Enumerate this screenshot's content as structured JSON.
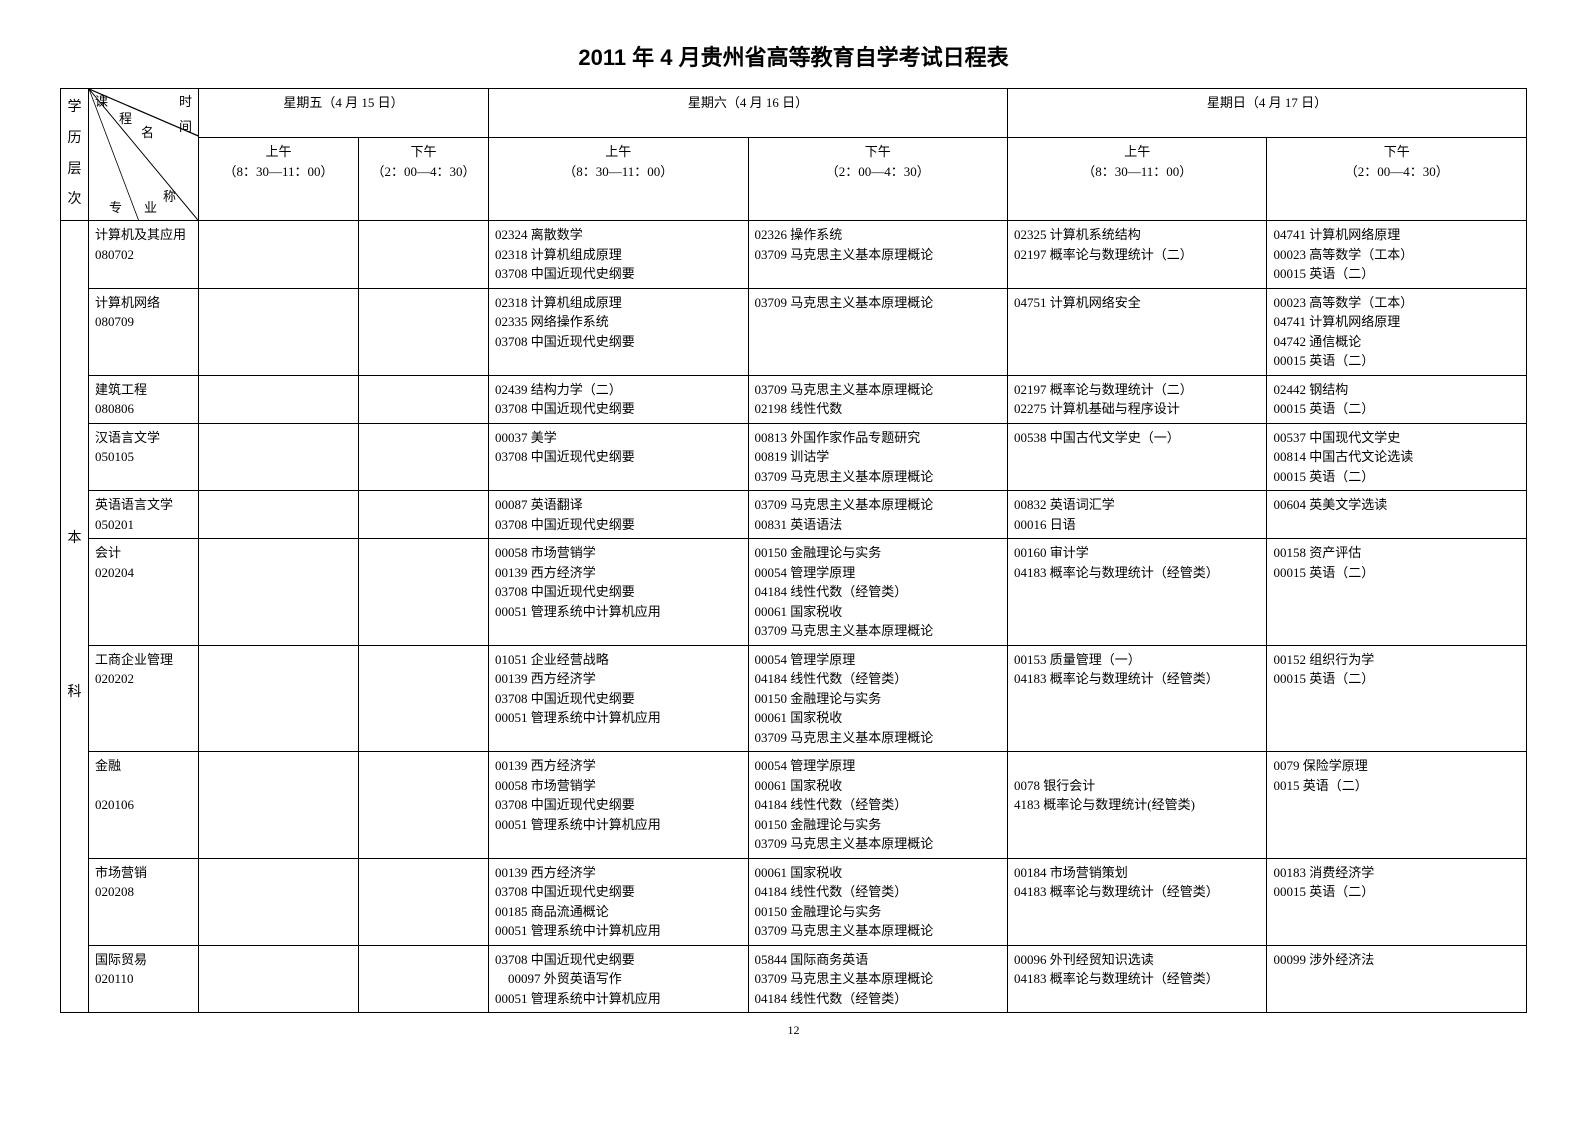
{
  "title": "2011 年 4 月贵州省高等教育自学考试日程表",
  "page_number": "12",
  "level_label": "学历层次",
  "level_value": "本\n\n\n\n\n科",
  "diag": {
    "top_left": "课",
    "top_right": "时",
    "mid_left": "程",
    "mid_center_r": "间",
    "center_name": "名",
    "bot_left": "专",
    "bot_suffix": "称",
    "bot_right": "业"
  },
  "day_headers": [
    "星期五（4 月 15 日）",
    "星期六（4 月 16 日）",
    "星期日（4 月 17 日）"
  ],
  "session_headers": {
    "fri_am": "上午\n（8：30—11：00）",
    "fri_pm": "下午\n（2：00—4：30）",
    "sat_am": "上午\n（8：30—11：00）",
    "sat_pm": "下午\n（2：00—4：30）",
    "sun_am": "上午\n（8：30—11：00）",
    "sun_pm": "下午\n（2：00—4：30）"
  },
  "rows": [
    {
      "major": "计算机及其应用\n080702",
      "fri_am": "",
      "fri_pm": "",
      "sat_am": "02324 离散数学\n02318 计算机组成原理\n03708 中国近现代史纲要",
      "sat_pm": "02326 操作系统\n03709 马克思主义基本原理概论",
      "sun_am": "02325 计算机系统结构\n02197 概率论与数理统计（二）",
      "sun_pm": "04741 计算机网络原理\n00023 高等数学（工本）\n00015 英语（二）"
    },
    {
      "major": "计算机网络\n080709",
      "fri_am": "",
      "fri_pm": "",
      "sat_am": "02318 计算机组成原理\n02335 网络操作系统\n03708 中国近现代史纲要",
      "sat_pm": "03709 马克思主义基本原理概论",
      "sun_am": "04751 计算机网络安全",
      "sun_pm": "00023 高等数学（工本）\n04741 计算机网络原理\n04742 通信概论\n00015 英语（二）"
    },
    {
      "major": "建筑工程\n080806",
      "fri_am": "",
      "fri_pm": "",
      "sat_am": "02439 结构力学（二）\n03708 中国近现代史纲要",
      "sat_pm": "03709 马克思主义基本原理概论\n02198 线性代数",
      "sun_am": "02197 概率论与数理统计（二）\n02275 计算机基础与程序设计",
      "sun_pm": "02442 钢结构\n00015 英语（二）"
    },
    {
      "major": "汉语言文学\n050105",
      "fri_am": "",
      "fri_pm": "",
      "sat_am": "00037 美学\n03708 中国近现代史纲要",
      "sat_pm": "00813 外国作家作品专题研究\n00819 训诂学\n03709 马克思主义基本原理概论",
      "sun_am": "00538 中国古代文学史（一）",
      "sun_pm": "00537 中国现代文学史\n00814 中国古代文论选读\n00015 英语（二）"
    },
    {
      "major": "英语语言文学\n050201",
      "fri_am": "",
      "fri_pm": "",
      "sat_am": "00087 英语翻译\n03708 中国近现代史纲要",
      "sat_pm": "03709 马克思主义基本原理概论\n00831 英语语法",
      "sun_am": "00832 英语词汇学\n00016 日语",
      "sun_pm": "00604 英美文学选读"
    },
    {
      "major": "会计\n020204",
      "fri_am": "",
      "fri_pm": "",
      "sat_am": "00058 市场营销学\n00139 西方经济学\n03708 中国近现代史纲要\n00051 管理系统中计算机应用",
      "sat_pm": "00150 金融理论与实务\n00054 管理学原理\n04184 线性代数（经管类）\n00061 国家税收\n03709 马克思主义基本原理概论",
      "sun_am": "00160 审计学\n04183 概率论与数理统计（经管类）",
      "sun_pm": "00158 资产评估\n00015 英语（二）"
    },
    {
      "major": "工商企业管理\n020202",
      "fri_am": "",
      "fri_pm": "",
      "sat_am": "01051 企业经营战略\n00139 西方经济学\n03708 中国近现代史纲要\n00051 管理系统中计算机应用",
      "sat_pm": "00054 管理学原理\n04184 线性代数（经管类）\n00150 金融理论与实务\n00061 国家税收\n03709 马克思主义基本原理概论",
      "sun_am": "00153 质量管理（一）\n04183 概率论与数理统计（经管类）",
      "sun_pm": "00152 组织行为学\n00015 英语（二）"
    },
    {
      "major": "金融\n\n020106",
      "fri_am": "",
      "fri_pm": "",
      "sat_am": "00139 西方经济学\n00058 市场营销学\n03708 中国近现代史纲要\n00051 管理系统中计算机应用",
      "sat_pm": "00054 管理学原理\n00061 国家税收\n04184 线性代数（经管类）\n00150 金融理论与实务\n03709 马克思主义基本原理概论",
      "sun_am": "\n0078 银行会计\n4183 概率论与数理统计(经管类)",
      "sun_pm": "0079 保险学原理\n0015 英语（二）"
    },
    {
      "major": "市场营销\n020208",
      "fri_am": "",
      "fri_pm": "",
      "sat_am": "00139 西方经济学\n03708 中国近现代史纲要\n00185 商品流通概论\n00051 管理系统中计算机应用",
      "sat_pm": "00061 国家税收\n04184 线性代数（经管类）\n00150 金融理论与实务\n03709 马克思主义基本原理概论",
      "sun_am": "00184 市场营销策划\n04183 概率论与数理统计（经管类）",
      "sun_pm": "00183 消费经济学\n00015 英语（二）"
    },
    {
      "major": "国际贸易\n020110",
      "fri_am": "",
      "fri_pm": "",
      "sat_am": "03708 中国近现代史纲要\n　00097 外贸英语写作\n00051 管理系统中计算机应用",
      "sat_pm": "05844 国际商务英语\n03709 马克思主义基本原理概论\n04184 线性代数（经管类）",
      "sun_am": "00096 外刊经贸知识选读\n04183 概率论与数理统计（经管类）",
      "sun_pm": "00099 涉外经济法"
    }
  ]
}
